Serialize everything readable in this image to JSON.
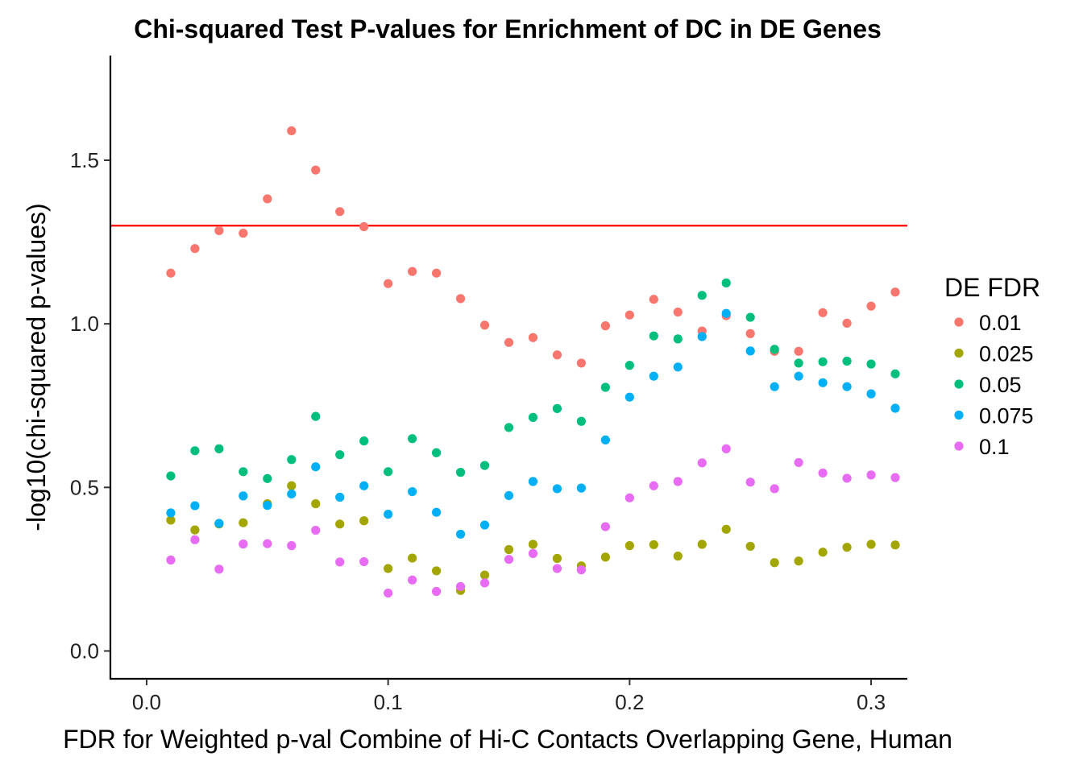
{
  "chart_data": {
    "type": "scatter",
    "title": "Chi-squared Test P-values for Enrichment of DC in DE Genes",
    "xlabel": "FDR for Weighted p-val Combine of Hi-C Contacts Overlapping Gene, Human",
    "ylabel": "-log10(chi-squared p-values)",
    "xlim": [
      -0.015,
      0.315
    ],
    "ylim": [
      -0.085,
      1.82
    ],
    "x_ticks": [
      "0.0",
      "0.1",
      "0.2",
      "0.3"
    ],
    "x_tick_values": [
      0.0,
      0.1,
      0.2,
      0.3
    ],
    "y_ticks": [
      "0.0",
      "0.5",
      "1.0",
      "1.5"
    ],
    "y_tick_values": [
      0.0,
      0.5,
      1.0,
      1.5
    ],
    "grid": false,
    "reference_line": {
      "y": 1.3,
      "color": "#ff0000"
    },
    "legend": {
      "title": "DE FDR",
      "position": "right"
    },
    "x": [
      0.01,
      0.02,
      0.03,
      0.04,
      0.05,
      0.06,
      0.07,
      0.08,
      0.09,
      0.1,
      0.11,
      0.12,
      0.13,
      0.14,
      0.15,
      0.16,
      0.17,
      0.18,
      0.19,
      0.2,
      0.21,
      0.22,
      0.23,
      0.24,
      0.25,
      0.26,
      0.27,
      0.28,
      0.29,
      0.3,
      0.31
    ],
    "series": [
      {
        "name": "0.01",
        "color": "#F8766D",
        "values": [
          1.155,
          1.23,
          1.285,
          1.277,
          1.382,
          1.59,
          1.47,
          1.343,
          1.297,
          1.123,
          1.16,
          1.155,
          1.077,
          0.996,
          0.943,
          0.958,
          0.905,
          0.88,
          0.994,
          1.027,
          1.075,
          1.036,
          0.978,
          1.025,
          0.97,
          0.916,
          0.916,
          1.034,
          1.002,
          1.054,
          1.097
        ]
      },
      {
        "name": "0.025",
        "color": "#A3A500",
        "values": [
          0.4,
          0.37,
          0.388,
          0.392,
          0.45,
          0.505,
          0.45,
          0.388,
          0.398,
          0.252,
          0.284,
          0.245,
          0.185,
          0.232,
          0.31,
          0.326,
          0.283,
          0.26,
          0.287,
          0.322,
          0.325,
          0.29,
          0.326,
          0.372,
          0.32,
          0.27,
          0.275,
          0.302,
          0.317,
          0.326,
          0.324
        ]
      },
      {
        "name": "0.05",
        "color": "#00BF7D",
        "values": [
          0.535,
          0.612,
          0.618,
          0.548,
          0.527,
          0.585,
          0.717,
          0.6,
          0.642,
          0.548,
          0.649,
          0.606,
          0.546,
          0.567,
          0.683,
          0.714,
          0.741,
          0.702,
          0.806,
          0.873,
          0.963,
          0.954,
          1.087,
          1.125,
          1.02,
          0.922,
          0.88,
          0.884,
          0.886,
          0.877,
          0.847
        ]
      },
      {
        "name": "0.075",
        "color": "#00B0F6",
        "values": [
          0.422,
          0.444,
          0.39,
          0.474,
          0.445,
          0.48,
          0.563,
          0.47,
          0.505,
          0.418,
          0.487,
          0.424,
          0.357,
          0.385,
          0.475,
          0.518,
          0.496,
          0.498,
          0.645,
          0.776,
          0.84,
          0.868,
          0.961,
          1.032,
          0.917,
          0.808,
          0.84,
          0.82,
          0.808,
          0.786,
          0.742
        ]
      },
      {
        "name": "0.1",
        "color": "#E76BF3",
        "values": [
          0.278,
          0.34,
          0.25,
          0.327,
          0.328,
          0.322,
          0.369,
          0.272,
          0.273,
          0.177,
          0.217,
          0.182,
          0.197,
          0.208,
          0.28,
          0.298,
          0.252,
          0.248,
          0.38,
          0.468,
          0.505,
          0.518,
          0.575,
          0.618,
          0.516,
          0.496,
          0.576,
          0.544,
          0.528,
          0.538,
          0.53
        ]
      }
    ]
  }
}
